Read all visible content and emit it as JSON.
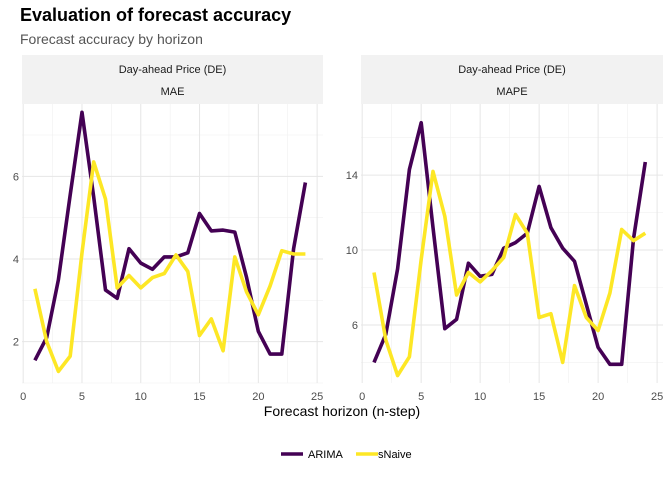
{
  "title": "Evaluation of forecast accuracy",
  "subtitle": "Forecast accuracy by horizon",
  "chart_data": {
    "type": "line",
    "xlabel": "Forecast horizon (n-step)",
    "ylabel": "",
    "legend_position": "bottom",
    "grid": true,
    "xlim": [
      0,
      25
    ],
    "xticks": [
      0,
      5,
      10,
      15,
      20,
      25
    ],
    "colors": {
      "ARIMA": "#440154",
      "sNaive": "#FDE725"
    },
    "legend": [
      "ARIMA",
      "sNaive"
    ],
    "panels": [
      {
        "strip_top": "Day-ahead Price (DE)",
        "strip_bottom": "MAE",
        "ylim": [
          1.0,
          7.75
        ],
        "yticks": [
          2,
          4,
          6
        ],
        "x": [
          1,
          2,
          3,
          4,
          5,
          6,
          7,
          8,
          9,
          10,
          11,
          12,
          13,
          14,
          15,
          16,
          17,
          18,
          19,
          20,
          21,
          22,
          23,
          24
        ],
        "series": [
          {
            "name": "ARIMA",
            "values": [
              1.55,
              2.1,
              3.5,
              5.55,
              7.55,
              5.5,
              3.25,
              3.05,
              4.25,
              3.9,
              3.75,
              4.05,
              4.05,
              4.15,
              5.1,
              4.68,
              4.7,
              4.65,
              3.55,
              2.25,
              1.7,
              1.7,
              4.25,
              5.85
            ]
          },
          {
            "name": "sNaive",
            "values": [
              3.28,
              2.0,
              1.28,
              1.65,
              4.15,
              6.35,
              5.45,
              3.3,
              3.6,
              3.3,
              3.55,
              3.65,
              4.1,
              3.7,
              2.15,
              2.55,
              1.78,
              4.05,
              3.2,
              2.65,
              3.35,
              4.2,
              4.12,
              4.12
            ]
          }
        ]
      },
      {
        "strip_top": "Day-ahead Price (DE)",
        "strip_bottom": "MAPE",
        "ylim": [
          2.9,
          17.8
        ],
        "yticks": [
          6,
          10,
          14
        ],
        "x": [
          1,
          2,
          3,
          4,
          5,
          6,
          7,
          8,
          9,
          10,
          11,
          12,
          13,
          14,
          15,
          16,
          17,
          18,
          19,
          20,
          21,
          22,
          23,
          24
        ],
        "series": [
          {
            "name": "ARIMA",
            "values": [
              4.0,
              5.5,
              9.0,
              14.3,
              16.8,
              11.2,
              5.8,
              6.3,
              9.3,
              8.6,
              8.7,
              10.1,
              10.4,
              10.9,
              13.4,
              11.2,
              10.1,
              9.4,
              7.1,
              4.8,
              3.9,
              3.9,
              10.6,
              14.7
            ]
          },
          {
            "name": "sNaive",
            "values": [
              8.8,
              5.2,
              3.3,
              4.3,
              9.5,
              14.2,
              11.8,
              7.6,
              8.8,
              8.3,
              8.9,
              9.6,
              11.9,
              10.9,
              6.4,
              6.6,
              4.0,
              8.1,
              6.4,
              5.7,
              7.7,
              11.1,
              10.5,
              10.9
            ]
          }
        ]
      }
    ]
  }
}
